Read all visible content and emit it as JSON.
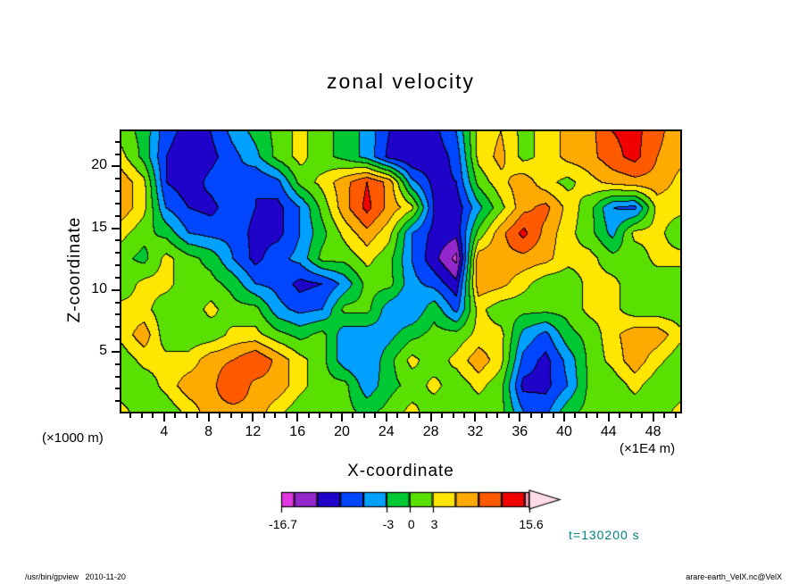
{
  "figure": {
    "title": "zonal velocity",
    "time_label": "t=130200 s",
    "time_label_color": "#008080",
    "footer_left": "/usr/bin/gpview   2010-11-20",
    "footer_right": "arare-earth_VelX.nc@VelX"
  },
  "chart_data": {
    "type": "heatmap",
    "title": "zonal velocity",
    "xlabel": "X-coordinate",
    "ylabel": "Z-coordinate",
    "x_unit_label": "(×1E4 m)",
    "z_unit_label": "(×1000 m)",
    "xlim": [
      0,
      50.6
    ],
    "zlim": [
      0,
      23
    ],
    "x_major_ticks": [
      4,
      8,
      12,
      16,
      20,
      24,
      28,
      32,
      36,
      40,
      44,
      48
    ],
    "x_minor_step": 1,
    "z_major_ticks": [
      5,
      10,
      15,
      20
    ],
    "z_minor_step": 1,
    "vmin": -16.7,
    "vmax": 15.6,
    "contour_interval": 3,
    "levels": [
      -15,
      -12,
      -9,
      -6,
      -3,
      0,
      3,
      6,
      9,
      12,
      15
    ],
    "colors": [
      "#e038e0",
      "#9327cc",
      "#2003c8",
      "#0046ff",
      "#00a0ff",
      "#00c832",
      "#5ae000",
      "#ffe600",
      "#ffaa00",
      "#ff5a00",
      "#f00000",
      "#ff96b4"
    ],
    "arrow_color": "#ffdce6",
    "colorbar_tick_values": [
      -16.7,
      -3,
      0,
      3,
      15.6
    ],
    "colorbar_tick_labels": [
      "-16.7",
      "-3",
      "0",
      "3",
      "15.6"
    ],
    "legend_position": "bottom",
    "grid": {
      "x": [
        0,
        2,
        4,
        6,
        8,
        10,
        12,
        14,
        16,
        18,
        20,
        22,
        24,
        26,
        28,
        30,
        32,
        34,
        36,
        38,
        40,
        42,
        44,
        46,
        48,
        50
      ],
      "z": [
        22,
        20,
        18,
        16,
        14,
        12,
        10,
        8,
        6,
        4,
        2,
        0
      ],
      "values": [
        [
          1.5,
          -1,
          -8,
          -10,
          -9,
          -5,
          -2,
          1,
          4,
          1,
          -1,
          -4,
          -9,
          -11,
          -10,
          -6,
          4,
          6,
          2,
          4,
          7,
          8,
          12,
          13,
          10,
          7
        ],
        [
          4,
          -1,
          -9,
          -11,
          -10,
          -7,
          -4,
          1,
          4,
          1,
          -1,
          -4,
          -10,
          -12,
          -11,
          -8,
          4,
          7,
          2,
          4,
          7,
          8,
          11,
          13,
          9,
          7
        ],
        [
          8,
          4,
          -9,
          -11,
          -8,
          -6,
          -9,
          -7,
          1,
          4,
          8,
          12,
          8,
          -5,
          -10,
          -9,
          1,
          5,
          8,
          4,
          2,
          5,
          7,
          8,
          8,
          5
        ],
        [
          8,
          4,
          -6,
          -9,
          -10,
          -7,
          -9,
          -10,
          -6,
          1,
          8,
          13,
          8,
          4,
          -9,
          -11,
          -4,
          2,
          8,
          10,
          5,
          1,
          -6,
          -7,
          4,
          4
        ],
        [
          4,
          1,
          -1,
          -6,
          -7,
          -7,
          -10,
          -10,
          -6,
          -1,
          4,
          8,
          4,
          -6,
          -10,
          -11,
          1,
          8,
          13,
          8,
          4,
          1,
          -4,
          4,
          4,
          1
        ],
        [
          1,
          -1,
          4,
          1,
          -1,
          -6,
          -10,
          -7,
          -5,
          1,
          1,
          4,
          1,
          -6,
          -11,
          -16,
          8,
          8,
          8,
          7,
          4,
          4,
          1,
          1,
          4,
          4
        ],
        [
          1,
          4,
          4,
          1,
          1,
          -1,
          -6,
          -7,
          -10,
          -9,
          -5,
          1,
          1,
          -5,
          -7,
          -11,
          8,
          7,
          4,
          1,
          1,
          4,
          4,
          1,
          1,
          1
        ],
        [
          4,
          4,
          1,
          1,
          4,
          1,
          1,
          -5,
          -7,
          -6,
          1,
          1,
          -5,
          -6,
          -1,
          -7,
          4,
          1,
          1,
          1,
          1,
          4,
          4,
          1,
          1,
          1
        ],
        [
          4,
          8,
          1,
          1,
          1,
          4,
          4,
          1,
          -1,
          1,
          -5,
          -5,
          -4,
          -1,
          1,
          1,
          4,
          4,
          -4,
          -7,
          -1,
          1,
          5,
          8,
          8,
          4
        ],
        [
          1,
          4,
          4,
          4,
          8,
          9,
          12,
          8,
          4,
          1,
          -5,
          -6,
          -1,
          4,
          1,
          4,
          8,
          4,
          -7,
          -10,
          -5,
          1,
          4,
          8,
          4,
          1
        ],
        [
          1,
          1,
          4,
          8,
          8,
          12,
          8,
          8,
          4,
          1,
          1,
          -5,
          -1,
          1,
          4,
          1,
          4,
          1,
          -10,
          -10,
          -6,
          1,
          1,
          4,
          1,
          1
        ],
        [
          4,
          1,
          1,
          4,
          8,
          8,
          8,
          4,
          1,
          1,
          1,
          -1,
          1,
          4,
          1,
          1,
          1,
          1,
          -6,
          -7,
          -1,
          1,
          1,
          1,
          1,
          4
        ]
      ]
    }
  }
}
